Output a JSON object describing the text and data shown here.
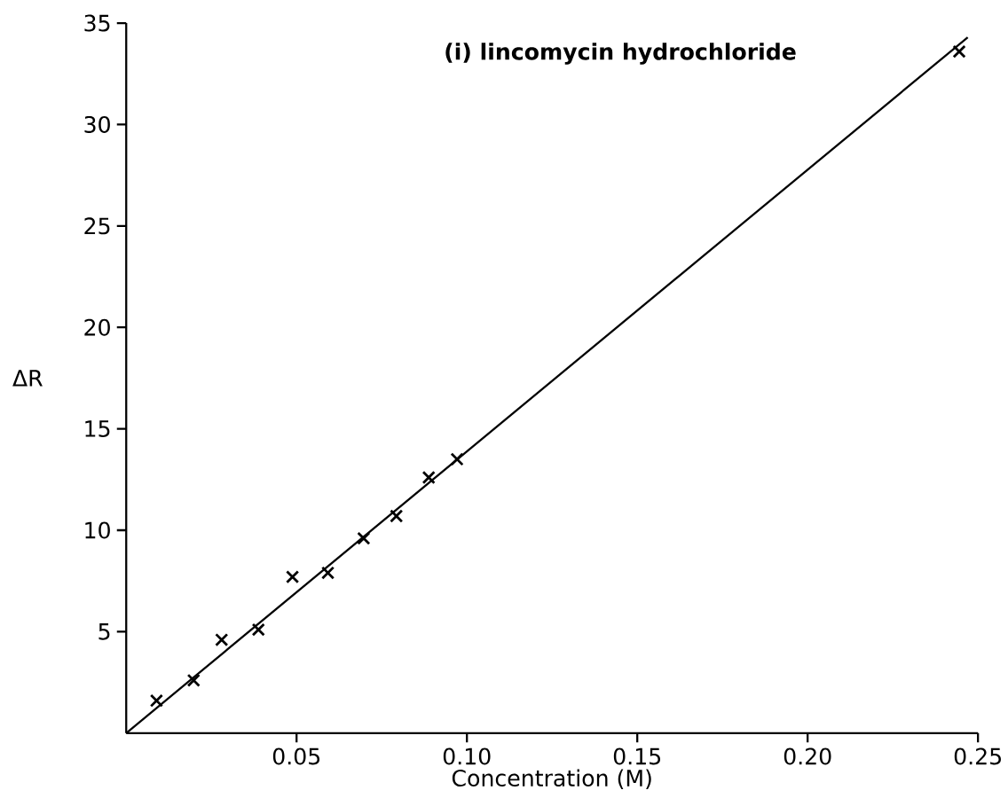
{
  "chart_data": {
    "type": "scatter",
    "title": "(i) lincomycin hydrochloride",
    "xlabel": "Concentration (M)",
    "ylabel": "ΔR",
    "series": [
      {
        "color": "#000000",
        "marker": "cross",
        "x": [
          0.0089,
          0.0198,
          0.028,
          0.0388,
          0.0488,
          0.0592,
          0.0697,
          0.0793,
          0.0888,
          0.0971,
          0.2445
        ],
        "values": [
          1.6,
          2.6,
          4.6,
          5.1,
          7.7,
          7.9,
          9.6,
          10.7,
          12.6,
          13.5,
          33.6
        ]
      },
      {
        "type": "line",
        "color": "#000000",
        "line_style": "solid",
        "x": [
          0,
          0.247
        ],
        "values": [
          0,
          34.3
        ]
      }
    ],
    "xlim": [
      0,
      0.25
    ],
    "ylim": [
      0,
      35
    ],
    "xticks": [
      0.05,
      {
        "value": 0.1,
        "label": "0.10"
      },
      0.15,
      {
        "value": 0.2,
        "label": "0.20"
      },
      0.25
    ],
    "yticks": [
      5,
      10,
      15,
      20,
      25,
      30,
      35
    ],
    "grid": false
  }
}
